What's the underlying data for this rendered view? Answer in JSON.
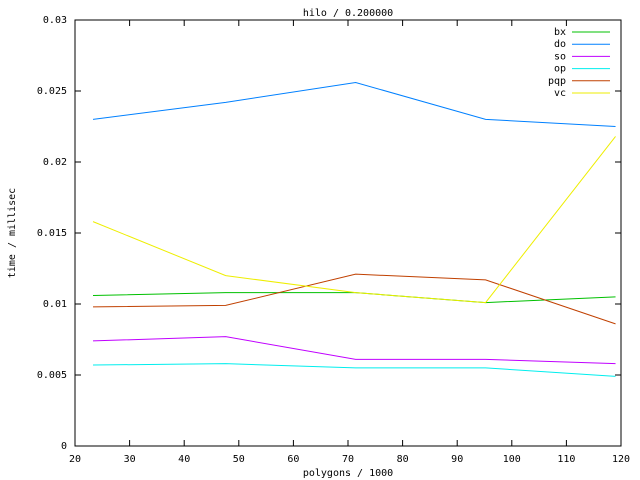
{
  "chart_data": {
    "type": "line",
    "title": "hilo / 0.200000",
    "x_label": "polygons / 1000",
    "y_label": "time / millisec",
    "x": [
      23.3,
      47.6,
      71.4,
      95.2,
      119
    ],
    "series": [
      {
        "name": "bx",
        "color": "#00c000",
        "values": [
          0.0106,
          0.0108,
          0.0108,
          0.0101,
          0.0105
        ]
      },
      {
        "name": "do",
        "color": "#0080ff",
        "values": [
          0.023,
          0.0242,
          0.0256,
          0.023,
          0.0225
        ]
      },
      {
        "name": "so",
        "color": "#c000ff",
        "values": [
          0.0074,
          0.0077,
          0.0061,
          0.0061,
          0.0058
        ]
      },
      {
        "name": "op",
        "color": "#00eeee",
        "values": [
          0.0057,
          0.0058,
          0.0055,
          0.0055,
          0.0049
        ]
      },
      {
        "name": "pqp",
        "color": "#c04000",
        "values": [
          0.0098,
          0.0099,
          0.0121,
          0.0117,
          0.0086
        ]
      },
      {
        "name": "vc",
        "color": "#eeee00",
        "values": [
          0.0158,
          0.012,
          0.0108,
          0.0101,
          0.0218
        ]
      }
    ],
    "xlim": [
      20,
      120
    ],
    "xticks": [
      20,
      30,
      40,
      50,
      60,
      70,
      80,
      90,
      100,
      110,
      120
    ],
    "ylim": [
      0,
      0.03
    ],
    "yticks": [
      0,
      0.005,
      0.01,
      0.015,
      0.02,
      0.025,
      0.03
    ],
    "legend": "top-right",
    "grid": false
  }
}
